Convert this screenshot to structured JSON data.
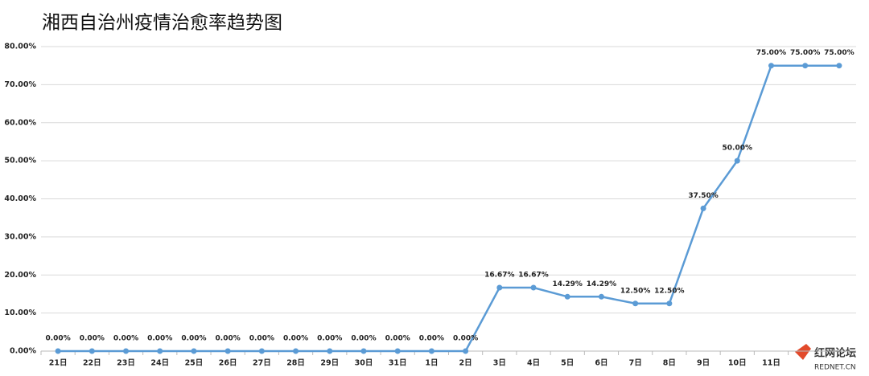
{
  "chart_data": {
    "type": "line",
    "title": "湘西自治州疫情治愈率趋势图",
    "categories": [
      "21日",
      "22日",
      "23日",
      "24日",
      "25日",
      "26日",
      "27日",
      "28日",
      "29日",
      "30日",
      "31日",
      "1日",
      "2日",
      "3日",
      "4日",
      "5日",
      "6日",
      "7日",
      "8日",
      "9日",
      "10日",
      "11日",
      null,
      null
    ],
    "series": [
      {
        "name": "治愈率",
        "color": "#5b9bd5",
        "values": [
          0,
          0,
          0,
          0,
          0,
          0,
          0,
          0,
          0,
          0,
          0,
          0,
          0,
          16.67,
          16.67,
          14.29,
          14.29,
          12.5,
          12.5,
          37.5,
          50,
          75,
          75,
          75
        ],
        "value_labels": [
          "0.00%",
          "0.00%",
          "0.00%",
          "0.00%",
          "0.00%",
          "0.00%",
          "0.00%",
          "0.00%",
          "0.00%",
          "0.00%",
          "0.00%",
          "0.00%",
          "0.00%",
          "16.67%",
          "16.67%",
          "14.29%",
          "14.29%",
          "12.50%",
          "12.50%",
          "37.50%",
          "50.00%",
          "75.00%",
          "75.00%",
          "75.00%"
        ]
      }
    ],
    "ylim": [
      0,
      80
    ],
    "yticks": [
      {
        "value": 0,
        "label": "0.00%"
      },
      {
        "value": 10,
        "label": "10.00%"
      },
      {
        "value": 20,
        "label": "20.00%"
      },
      {
        "value": 30,
        "label": "30.00%"
      },
      {
        "value": 40,
        "label": "40.00%"
      },
      {
        "value": 50,
        "label": "50.00%"
      },
      {
        "value": 60,
        "label": "60.00%"
      },
      {
        "value": 70,
        "label": "70.00%"
      },
      {
        "value": 80,
        "label": "80.00%"
      }
    ],
    "grid": true,
    "watermark": {
      "name": "红网论坛",
      "site": "REDNET.CN"
    }
  }
}
